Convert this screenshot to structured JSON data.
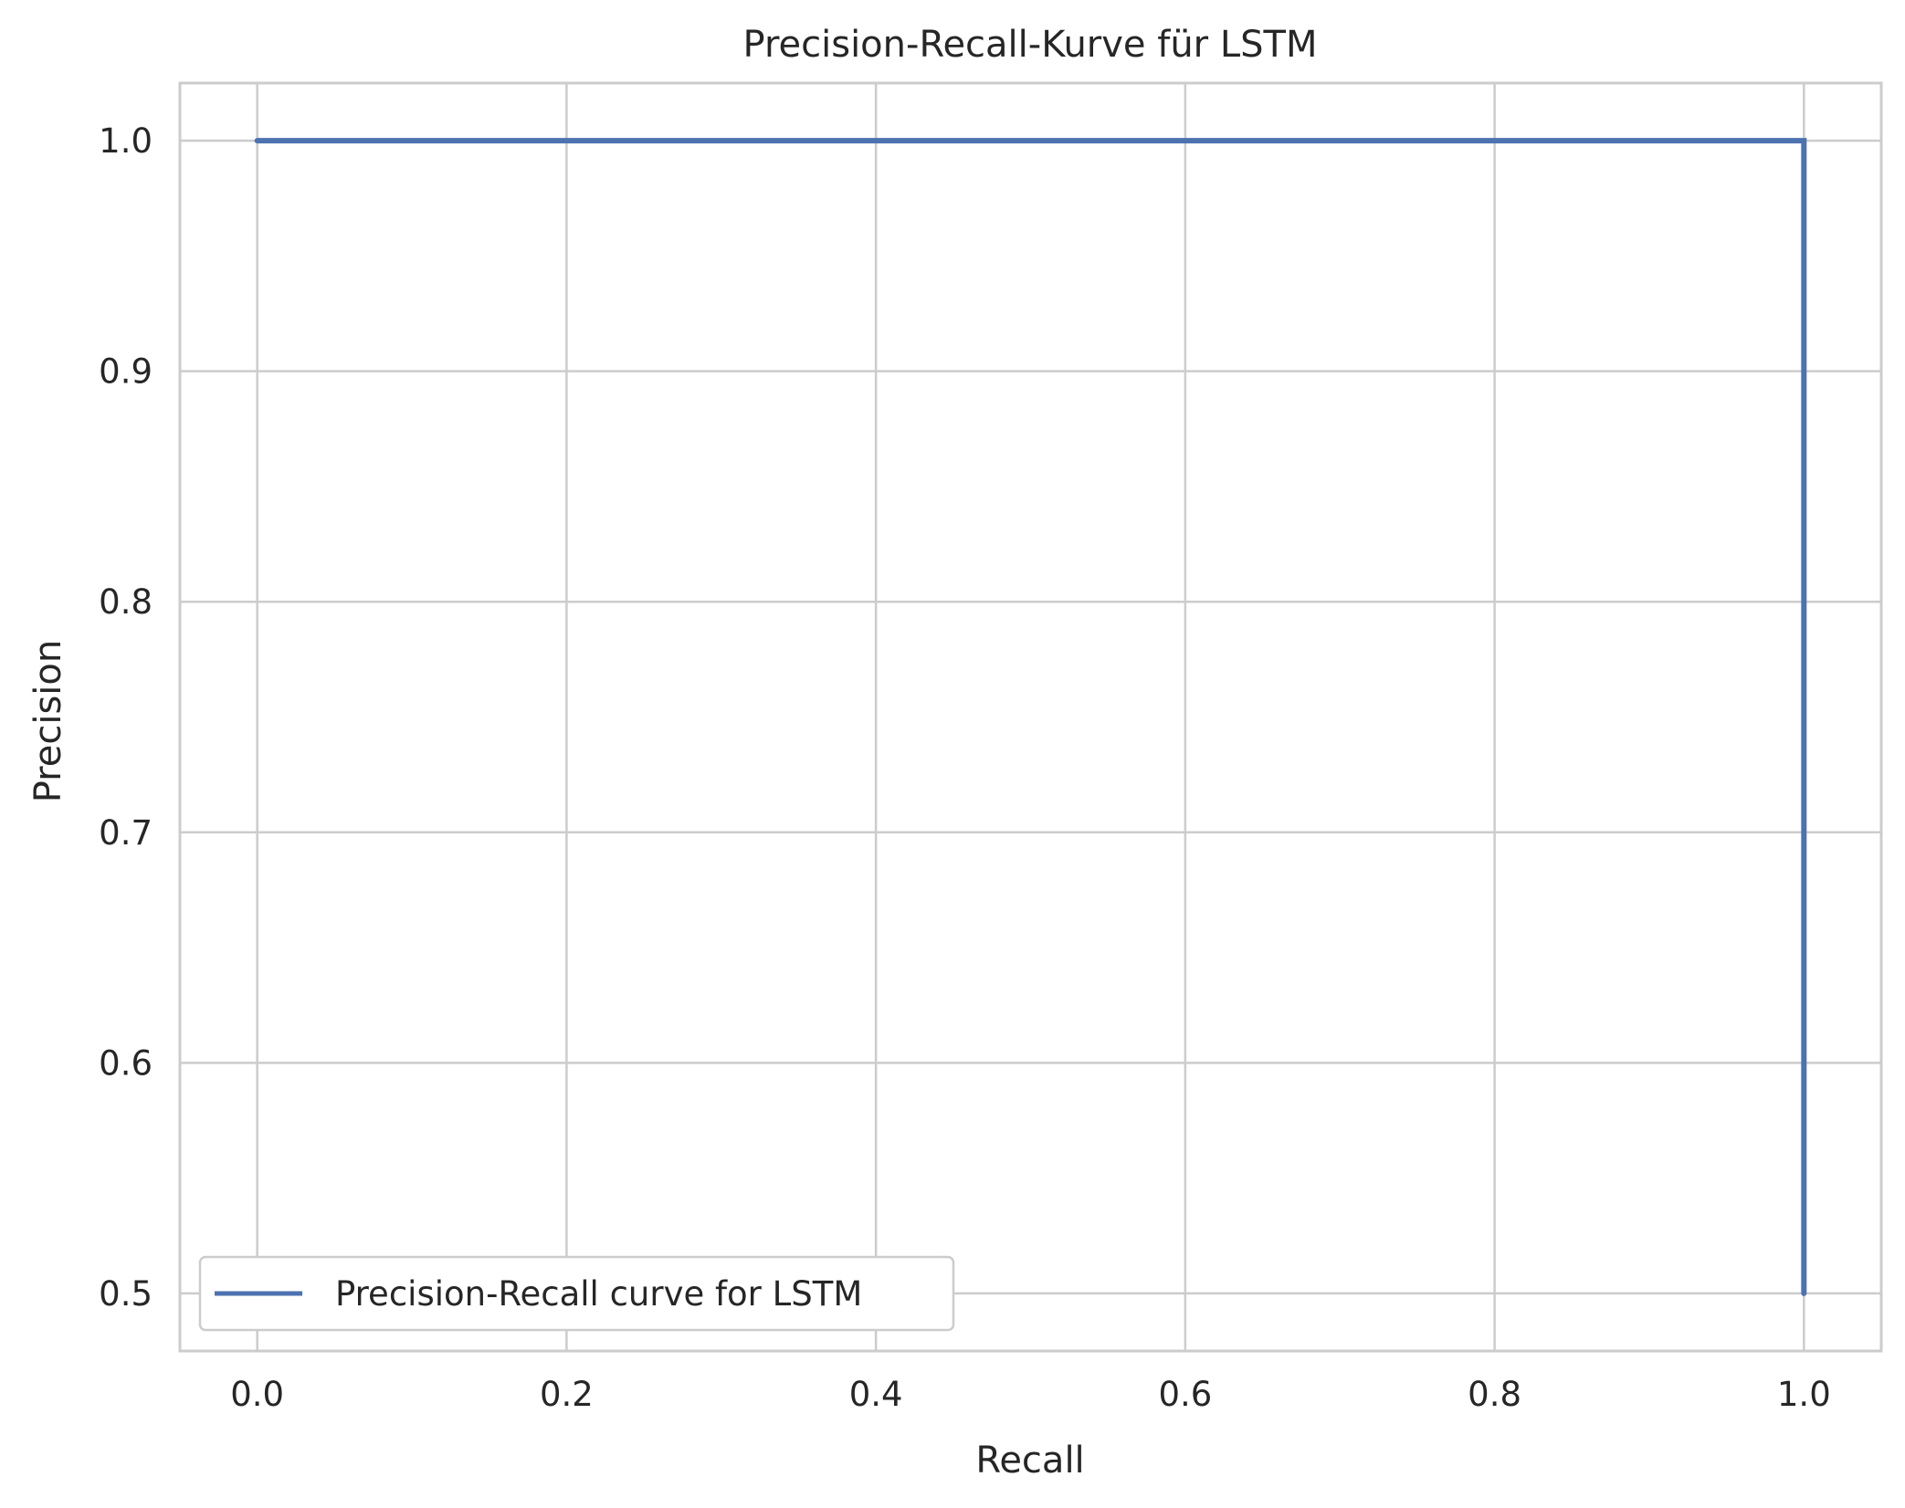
{
  "chart_data": {
    "type": "line",
    "title": "Precision-Recall-Kurve für LSTM",
    "xlabel": "Recall",
    "ylabel": "Precision",
    "xlim": [
      -0.05,
      1.05
    ],
    "ylim": [
      0.475,
      1.025
    ],
    "xticks": [
      0.0,
      0.2,
      0.4,
      0.6,
      0.8,
      1.0
    ],
    "xtick_labels": [
      "0.0",
      "0.2",
      "0.4",
      "0.6",
      "0.8",
      "1.0"
    ],
    "yticks": [
      0.5,
      0.6,
      0.7,
      0.8,
      0.9,
      1.0
    ],
    "ytick_labels": [
      "0.5",
      "0.6",
      "0.7",
      "0.8",
      "0.9",
      "1.0"
    ],
    "grid": true,
    "legend_position": "lower-left",
    "series": [
      {
        "name": "Precision-Recall curve for LSTM",
        "color": "#4c72b0",
        "x": [
          0.0,
          1.0,
          1.0
        ],
        "y": [
          1.0,
          1.0,
          0.5
        ]
      }
    ]
  }
}
